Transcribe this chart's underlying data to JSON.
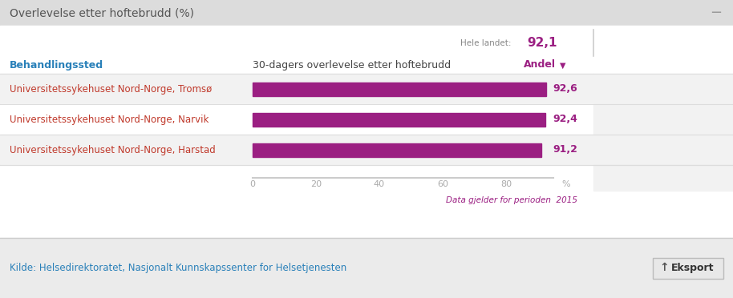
{
  "title": "Overlevelse etter hoftebrudd (%)",
  "title_minus": "−",
  "header_col1": "Behandlingssted",
  "header_col2": "30-dagers overlevelse etter hoftebrudd",
  "header_col3": "Andel",
  "hele_landet_label": "Hele landet:",
  "hele_landet_value": "92,1",
  "footnote": "Data gjelder for perioden  2015",
  "source": "Kilde: Helsedirektoratet, Nasjonalt Kunnskapssenter for Helsetjenesten",
  "eksport": "Eksport",
  "categories": [
    "Universitetssykehuset Nord-Norge, Tromsø",
    "Universitetssykehuset Nord-Norge, Narvik",
    "Universitetssykehuset Nord-Norge, Harstad"
  ],
  "values": [
    92.6,
    92.4,
    91.2
  ],
  "value_labels": [
    "92,6",
    "92,4",
    "91,2"
  ],
  "bar_color": "#9b1f82",
  "hospital_text_color": "#c0392b",
  "header_color": "#2980b9",
  "andel_color": "#9b1f82",
  "hele_landet_label_color": "#888888",
  "title_text_color": "#555555",
  "title_bg_color": "#dcdcdc",
  "row_colors": [
    "#f2f2f2",
    "#ffffff",
    "#f2f2f2"
  ],
  "axis_tick_color": "#aaaaaa",
  "scale_max": 100,
  "bar_display_max": 95,
  "tick_values": [
    0,
    20,
    40,
    60,
    80
  ],
  "tick_label": "%",
  "fig_bg_color": "#ebebeb",
  "panel_bg_color": "#ffffff",
  "right_col_bg": "#f2f2f2",
  "separator_color": "#dddddd",
  "vline_color": "#cccccc",
  "footnote_color": "#9b1f82"
}
